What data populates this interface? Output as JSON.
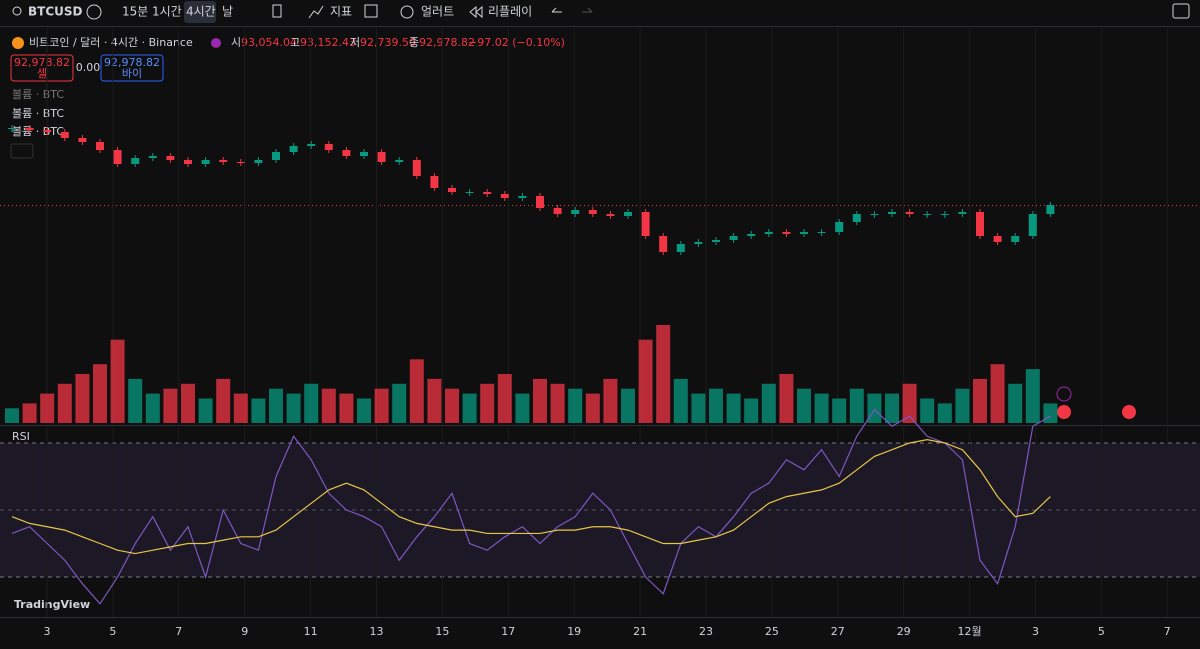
{
  "toolbar": {
    "symbol": "BTCUSD",
    "intervals": [
      "15분",
      "1시간",
      "4시간",
      "날"
    ],
    "indicators": "지표",
    "alert": "얼러트",
    "replay": "리플레이"
  },
  "legend": {
    "title": "비트코인 / 달러 · 4시간 · Binance",
    "open_label": "시",
    "open": "93,054.04",
    "high_label": "고",
    "high": "93,152.43",
    "low_label": "저",
    "low": "92,739.50",
    "close_label": "종",
    "close": "92,978.82",
    "change": "−97.02 (−0.10%)"
  },
  "trade": {
    "sell_price": "92,978.82",
    "sell_label": "셀",
    "spread": "0.00",
    "buy_price": "92,978.82",
    "buy_label": "바이"
  },
  "volume_labels": [
    "볼륨 · BTC",
    "볼륨 · BTC",
    "볼륨 · BTC"
  ],
  "rsi_label": "RSI",
  "brand": "TradingView",
  "x_labels": [
    "3",
    "5",
    "7",
    "9",
    "11",
    "13",
    "15",
    "17",
    "19",
    "21",
    "23",
    "25",
    "27",
    "29",
    "12월",
    "3",
    "5",
    "7"
  ],
  "closes": [
    95134,
    95078,
    95022,
    94854,
    94742,
    94518,
    94126,
    94294,
    94350,
    94238,
    94126,
    94238,
    94182,
    94154,
    94238,
    94462,
    94630,
    94686,
    94518,
    94350,
    94462,
    94182,
    94238,
    93790,
    93454,
    93342,
    93342,
    93286,
    93174,
    93230,
    92894,
    92726,
    92838,
    92726,
    92670,
    92782,
    92110,
    91662,
    91886,
    91942,
    91998,
    92110,
    92166,
    92222,
    92166,
    92222,
    92222,
    92502,
    92726,
    92726,
    92782,
    92726,
    92726,
    92726,
    92782,
    92110,
    91942,
    92110,
    92726,
    92978
  ],
  "volumes": [
    300,
    400,
    600,
    800,
    1000,
    1200,
    1700,
    900,
    600,
    700,
    800,
    500,
    900,
    600,
    500,
    700,
    600,
    800,
    700,
    600,
    500,
    700,
    800,
    1300,
    900,
    700,
    600,
    800,
    1000,
    600,
    900,
    800,
    700,
    600,
    900,
    700,
    1700,
    2000,
    900,
    600,
    700,
    600,
    500,
    800,
    1000,
    700,
    600,
    500,
    700,
    600,
    600,
    800,
    500,
    400,
    700,
    900,
    1200,
    800,
    1100,
    400
  ],
  "rsi": [
    43,
    45,
    40,
    35,
    28,
    22,
    30,
    40,
    48,
    38,
    45,
    30,
    50,
    40,
    38,
    60,
    72,
    65,
    55,
    50,
    48,
    45,
    35,
    42,
    48,
    55,
    40,
    38,
    42,
    45,
    40,
    45,
    48,
    55,
    50,
    40,
    30,
    25,
    40,
    45,
    42,
    48,
    55,
    58,
    65,
    62,
    68,
    60,
    72,
    80,
    75,
    78,
    72,
    70,
    65,
    35,
    28,
    45,
    75,
    78
  ],
  "rsi_ma": [
    48,
    46,
    45,
    44,
    42,
    40,
    38,
    37,
    38,
    39,
    40,
    40,
    41,
    42,
    42,
    44,
    48,
    52,
    56,
    58,
    56,
    52,
    48,
    46,
    45,
    44,
    44,
    43,
    43,
    43,
    43,
    44,
    44,
    45,
    45,
    44,
    42,
    40,
    40,
    41,
    42,
    44,
    48,
    52,
    54,
    55,
    56,
    58,
    62,
    66,
    68,
    70,
    71,
    70,
    68,
    62,
    54,
    48,
    49,
    54
  ]
}
